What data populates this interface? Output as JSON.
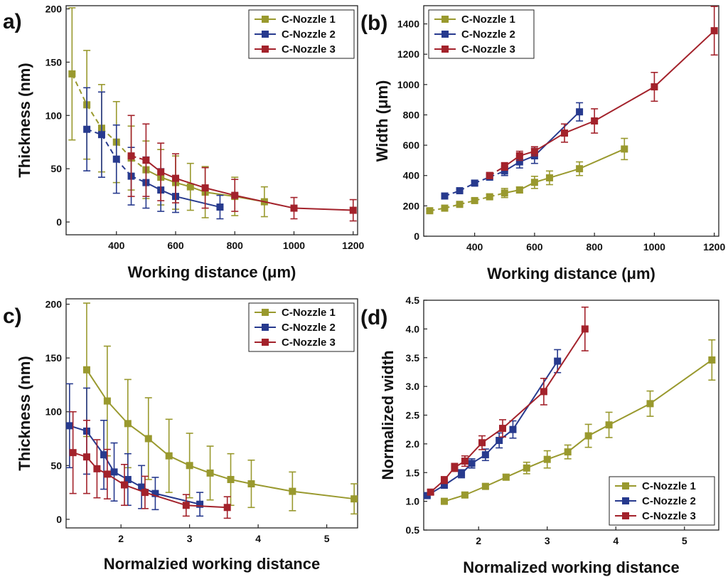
{
  "chart_data": [
    {
      "type": "line",
      "panel_label": "a)",
      "xlabel": "Working distance (μm)",
      "ylabel": "Thickness (nm)",
      "xlim": [
        230,
        1215
      ],
      "ylim": [
        -12,
        203
      ],
      "xticks": [
        400,
        600,
        800,
        1000,
        1200
      ],
      "yticks": [
        0,
        50,
        100,
        150,
        200
      ],
      "legend_position": "top-right",
      "series": [
        {
          "name": "C-Nozzle 1",
          "color": "#99992e",
          "dashed_until": 500,
          "x": [
            250,
            300,
            350,
            400,
            450,
            500,
            550,
            600,
            650,
            700,
            800,
            900
          ],
          "y": [
            139,
            110,
            88,
            75,
            60,
            49,
            42,
            37,
            33,
            28,
            24,
            19
          ],
          "err": [
            62,
            51,
            41,
            38,
            30,
            27,
            26,
            25,
            22,
            24,
            18,
            14
          ]
        },
        {
          "name": "C-Nozzle 2",
          "color": "#273a8e",
          "dashed_until": 500,
          "x": [
            300,
            350,
            400,
            450,
            500,
            550,
            600,
            750
          ],
          "y": [
            87,
            82,
            59,
            43,
            37,
            30,
            24,
            14
          ],
          "err": [
            39,
            40,
            32,
            27,
            24,
            20,
            15,
            11
          ]
        },
        {
          "name": "C-Nozzle 3",
          "color": "#a3222b",
          "dashed_until": 500,
          "x": [
            450,
            500,
            550,
            600,
            700,
            800,
            1000,
            1200
          ],
          "y": [
            62,
            58,
            47,
            41,
            32,
            25,
            13,
            11
          ],
          "err": [
            38,
            34,
            27,
            23,
            19,
            15,
            10,
            10
          ]
        }
      ]
    },
    {
      "type": "line",
      "panel_label": "(b)",
      "xlabel": "Working distance (μm)",
      "ylabel": "Width (μm)",
      "xlim": [
        230,
        1215
      ],
      "ylim": [
        0,
        1520
      ],
      "xticks": [
        400,
        600,
        800,
        1000,
        1200
      ],
      "yticks": [
        0,
        200,
        400,
        600,
        800,
        1000,
        1200,
        1400
      ],
      "legend_position": "top-left",
      "series": [
        {
          "name": "C-Nozzle 1",
          "color": "#99992e",
          "dashed_until": 500,
          "x": [
            250,
            300,
            350,
            400,
            450,
            500,
            550,
            600,
            650,
            750,
            900
          ],
          "y": [
            168,
            185,
            210,
            235,
            260,
            285,
            305,
            355,
            385,
            445,
            575
          ],
          "err": [
            8,
            10,
            10,
            12,
            15,
            30,
            20,
            40,
            45,
            45,
            70
          ]
        },
        {
          "name": "C-Nozzle 2",
          "color": "#273a8e",
          "dashed_until": 500,
          "x": [
            300,
            350,
            400,
            450,
            500,
            550,
            600,
            750
          ],
          "y": [
            265,
            300,
            350,
            390,
            430,
            490,
            530,
            820
          ],
          "err": [
            10,
            10,
            15,
            20,
            30,
            40,
            50,
            60
          ]
        },
        {
          "name": "C-Nozzle 3",
          "color": "#a3222b",
          "dashed_until": 500,
          "x": [
            450,
            500,
            550,
            600,
            700,
            800,
            1000,
            1200
          ],
          "y": [
            400,
            460,
            530,
            560,
            680,
            760,
            985,
            1355
          ],
          "err": [
            20,
            25,
            30,
            30,
            60,
            80,
            95,
            160
          ]
        }
      ]
    },
    {
      "type": "line",
      "panel_label": "c)",
      "xlabel": "Normalzied working distance",
      "ylabel": "Thickness (nm)",
      "xlim": [
        1.2,
        5.45
      ],
      "ylim": [
        -8,
        205
      ],
      "xticks": [
        2,
        3,
        4,
        5
      ],
      "yticks": [
        0,
        50,
        100,
        150,
        200
      ],
      "legend_position": "top-right",
      "series": [
        {
          "name": "C-Nozzle 1",
          "color": "#99992e",
          "x": [
            1.5,
            1.8,
            2.1,
            2.4,
            2.7,
            3.0,
            3.3,
            3.6,
            3.9,
            4.5,
            5.4
          ],
          "y": [
            139,
            110,
            89,
            75,
            59,
            50,
            43,
            37,
            33,
            26,
            19
          ],
          "err": [
            62,
            51,
            41,
            38,
            34,
            30,
            25,
            24,
            22,
            18,
            14
          ]
        },
        {
          "name": "C-Nozzle 2",
          "color": "#273a8e",
          "x": [
            1.25,
            1.5,
            1.75,
            1.9,
            2.1,
            2.3,
            2.5,
            3.15
          ],
          "y": [
            87,
            82,
            60,
            44,
            37,
            30,
            24,
            14
          ],
          "err": [
            39,
            40,
            32,
            27,
            24,
            20,
            15,
            11
          ]
        },
        {
          "name": "C-Nozzle 3",
          "color": "#a3222b",
          "x": [
            1.3,
            1.5,
            1.65,
            1.8,
            2.05,
            2.35,
            2.95,
            3.55
          ],
          "y": [
            62,
            58,
            47,
            42,
            32,
            25,
            13,
            11
          ],
          "err": [
            38,
            34,
            27,
            23,
            19,
            15,
            10,
            10
          ]
        }
      ]
    },
    {
      "type": "line",
      "panel_label": "(d)",
      "xlabel": "Normalized working distance",
      "ylabel": "Normalized width",
      "xlim": [
        1.2,
        5.5
      ],
      "ylim": [
        0.5,
        4.5
      ],
      "xticks": [
        2,
        3,
        4,
        5
      ],
      "yticks": [
        0.5,
        1.0,
        1.5,
        2.0,
        2.5,
        3.0,
        3.5,
        4.0,
        4.5
      ],
      "legend_position": "bottom-right",
      "series": [
        {
          "name": "C-Nozzle 1",
          "color": "#99992e",
          "x": [
            1.5,
            1.8,
            2.1,
            2.4,
            2.7,
            3.0,
            3.3,
            3.6,
            3.9,
            4.5,
            5.4
          ],
          "y": [
            1.0,
            1.11,
            1.26,
            1.42,
            1.58,
            1.73,
            1.86,
            2.14,
            2.33,
            2.7,
            3.46
          ],
          "err": [
            0.03,
            0.04,
            0.04,
            0.05,
            0.1,
            0.15,
            0.12,
            0.2,
            0.22,
            0.22,
            0.35
          ]
        },
        {
          "name": "C-Nozzle 2",
          "color": "#273a8e",
          "x": [
            1.25,
            1.5,
            1.75,
            1.9,
            2.1,
            2.3,
            2.5,
            3.15
          ],
          "y": [
            1.1,
            1.28,
            1.48,
            1.66,
            1.81,
            2.06,
            2.25,
            3.44
          ],
          "err": [
            0.03,
            0.05,
            0.07,
            0.08,
            0.1,
            0.13,
            0.15,
            0.2
          ]
        },
        {
          "name": "C-Nozzle 3",
          "color": "#a3222b",
          "x": [
            1.3,
            1.5,
            1.65,
            1.8,
            2.05,
            2.35,
            2.95,
            3.55
          ],
          "y": [
            1.16,
            1.37,
            1.59,
            1.7,
            2.02,
            2.27,
            2.91,
            4.0
          ],
          "err": [
            0.04,
            0.06,
            0.07,
            0.09,
            0.12,
            0.15,
            0.23,
            0.38
          ]
        }
      ]
    }
  ]
}
